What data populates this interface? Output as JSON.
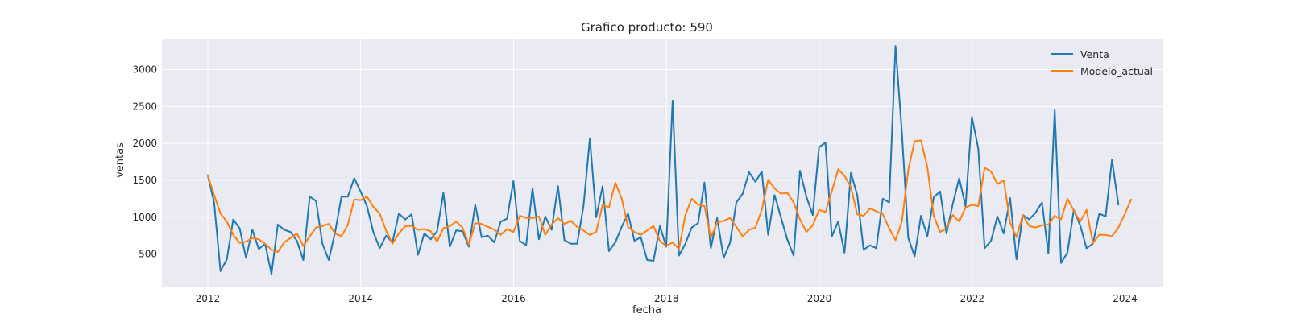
{
  "chart_data": {
    "type": "line",
    "title": "Grafico producto: 590",
    "xlabel": "fecha",
    "ylabel": "ventas",
    "x_ticks": [
      "2012",
      "2014",
      "2016",
      "2018",
      "2020",
      "2022",
      "2024"
    ],
    "y_ticks": [
      500,
      1000,
      1500,
      2000,
      2500,
      3000
    ],
    "xlim": [
      2011.4,
      2024.5
    ],
    "ylim": [
      60,
      3420
    ],
    "grid": true,
    "legend_position": "top-right",
    "x_start": 2012.0,
    "x_step": 0.0833,
    "series": [
      {
        "name": "Venta",
        "color": "#1f77b4",
        "values": [
          1570,
          1200,
          270,
          430,
          970,
          850,
          450,
          830,
          570,
          640,
          230,
          900,
          830,
          800,
          680,
          420,
          1280,
          1220,
          640,
          420,
          800,
          1280,
          1280,
          1530,
          1350,
          1150,
          800,
          580,
          750,
          660,
          1050,
          970,
          1040,
          490,
          780,
          700,
          810,
          1330,
          600,
          820,
          810,
          600,
          1170,
          730,
          750,
          660,
          940,
          980,
          1490,
          680,
          620,
          1390,
          700,
          1010,
          830,
          1420,
          690,
          640,
          640,
          1150,
          2070,
          1000,
          1420,
          540,
          660,
          870,
          1050,
          680,
          730,
          420,
          410,
          880,
          600,
          2580,
          480,
          640,
          860,
          920,
          1470,
          580,
          990,
          450,
          650,
          1200,
          1320,
          1610,
          1480,
          1620,
          760,
          1300,
          1000,
          700,
          480,
          1630,
          1280,
          1030,
          1950,
          2010,
          740,
          940,
          520,
          1600,
          1300,
          560,
          620,
          580,
          1250,
          1200,
          3320,
          2150,
          720,
          470,
          1020,
          740,
          1270,
          1350,
          780,
          1180,
          1530,
          1150,
          2360,
          1930,
          580,
          680,
          1010,
          780,
          1260,
          430,
          1030,
          970,
          1060,
          1200,
          510,
          2450,
          380,
          520,
          1100,
          890,
          580,
          640,
          1050,
          1010,
          1780,
          1170
        ]
      },
      {
        "name": "Modelo_actual",
        "color": "#ff7f0e",
        "values": [
          1570,
          1300,
          1050,
          940,
          760,
          650,
          670,
          720,
          700,
          640,
          560,
          530,
          660,
          720,
          780,
          610,
          740,
          860,
          880,
          910,
          780,
          740,
          900,
          1240,
          1230,
          1280,
          1140,
          1050,
          820,
          640,
          780,
          880,
          880,
          830,
          840,
          810,
          670,
          850,
          880,
          940,
          860,
          630,
          920,
          910,
          870,
          830,
          760,
          840,
          800,
          1020,
          990,
          990,
          1010,
          760,
          900,
          990,
          910,
          950,
          870,
          820,
          760,
          800,
          1170,
          1130,
          1470,
          1250,
          870,
          800,
          760,
          820,
          880,
          680,
          610,
          660,
          570,
          1030,
          1250,
          1170,
          1150,
          720,
          930,
          950,
          990,
          870,
          740,
          830,
          860,
          1100,
          1510,
          1390,
          1320,
          1330,
          1200,
          970,
          800,
          890,
          1100,
          1070,
          1350,
          1650,
          1560,
          1410,
          1040,
          1020,
          1120,
          1080,
          1040,
          850,
          690,
          940,
          1640,
          2030,
          2040,
          1680,
          1020,
          800,
          850,
          1030,
          940,
          1130,
          1170,
          1150,
          1670,
          1620,
          1450,
          1500,
          930,
          730,
          1030,
          880,
          860,
          890,
          900,
          1020,
          970,
          1250,
          1090,
          940,
          1100,
          650,
          760,
          760,
          740,
          860,
          1040,
          1240
        ]
      }
    ]
  }
}
